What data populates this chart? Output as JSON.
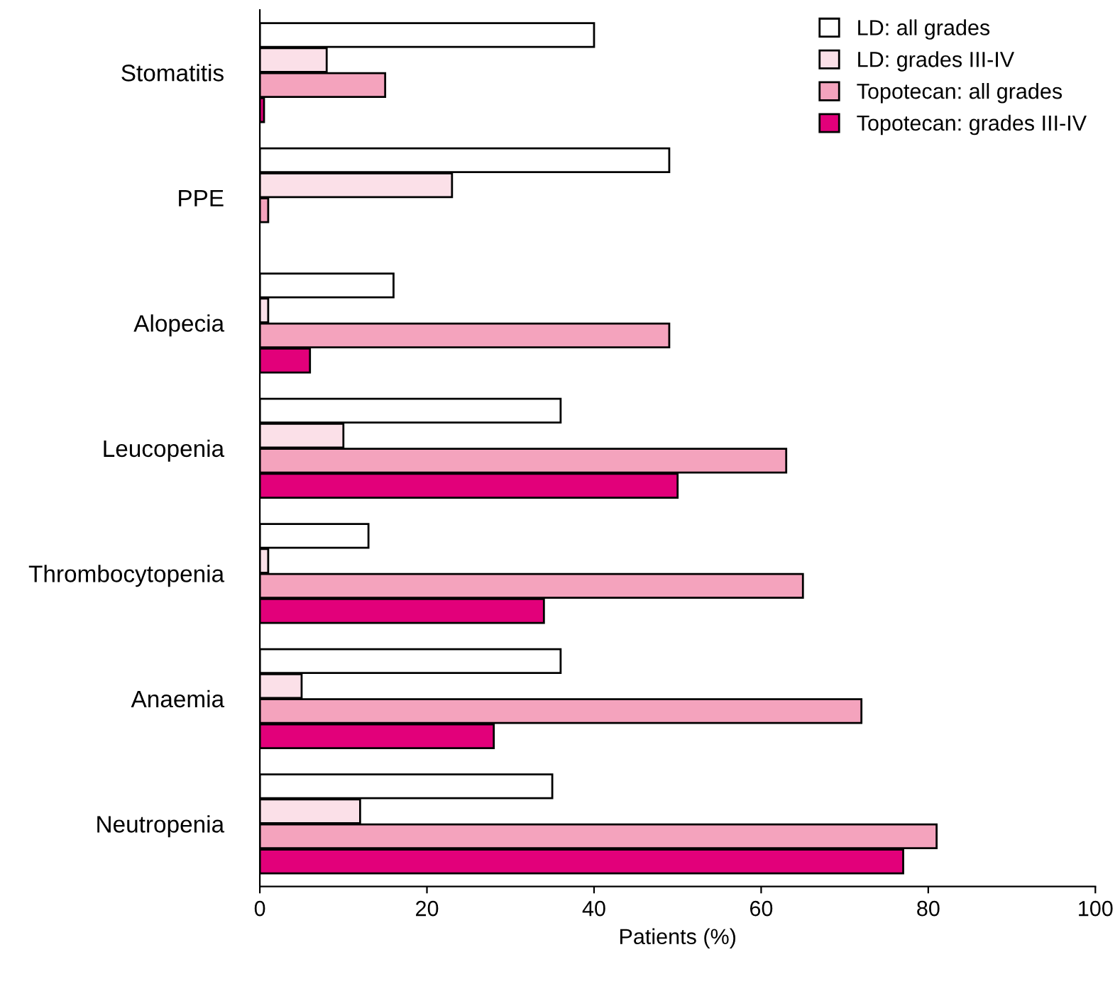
{
  "chart_data": {
    "type": "bar",
    "orientation": "horizontal",
    "xlabel": "Patients (%)",
    "categories": [
      "Stomatitis",
      "PPE",
      "Alopecia",
      "Leucopenia",
      "Thrombocytopenia",
      "Anaemia",
      "Neutropenia"
    ],
    "series": [
      {
        "name": "LD: all grades",
        "color": "#ffffff",
        "values": [
          40,
          49,
          16,
          36,
          13,
          36,
          35
        ]
      },
      {
        "name": "LD: grades III-IV",
        "color": "#fbe0e8",
        "values": [
          8,
          23,
          1,
          10,
          1,
          5,
          12
        ]
      },
      {
        "name": "Topotecan: all grades",
        "color": "#f4a3bd",
        "values": [
          15,
          1,
          49,
          63,
          65,
          72,
          81
        ]
      },
      {
        "name": "Topotecan: grades III-IV",
        "color": "#e2007a",
        "values": [
          0.5,
          null,
          6,
          50,
          34,
          28,
          77
        ]
      }
    ],
    "xlim": [
      0,
      100
    ],
    "xticks": [
      0,
      20,
      40,
      60,
      80,
      100
    ],
    "grid": false,
    "legend": "top right"
  }
}
